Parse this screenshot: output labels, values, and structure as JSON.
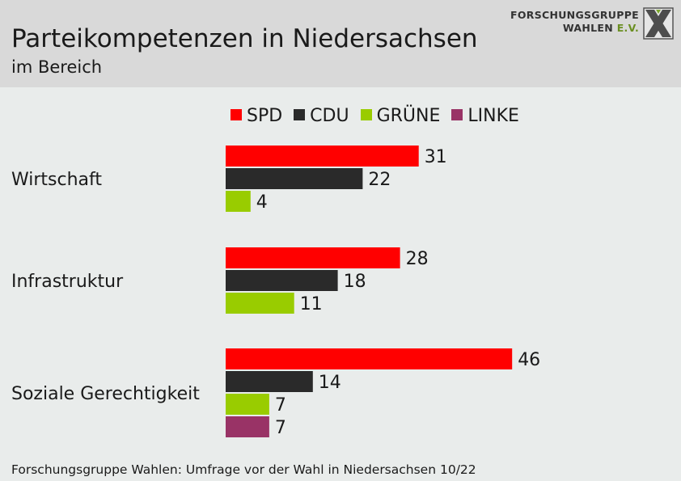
{
  "header": {
    "title": "Parteikompetenzen in Niedersachsen",
    "subtitle": "im Bereich",
    "logo_line1": "FORSCHUNGSGRUPPE",
    "logo_line2_main": "WAHLEN ",
    "logo_line2_suffix": "E.V."
  },
  "legend": [
    {
      "label": "SPD",
      "color": "#ff0000"
    },
    {
      "label": "CDU",
      "color": "#2a2a2a"
    },
    {
      "label": "GRÜNE",
      "color": "#99cc00"
    },
    {
      "label": "LINKE",
      "color": "#993366"
    }
  ],
  "chart_data": {
    "type": "bar",
    "orientation": "horizontal",
    "title": "Parteikompetenzen in Niedersachsen",
    "subtitle": "im Bereich",
    "categories": [
      "Wirtschaft",
      "Infrastruktur",
      "Soziale Gerechtigkeit"
    ],
    "series": [
      {
        "name": "SPD",
        "color": "#ff0000",
        "values": [
          31,
          28,
          46
        ]
      },
      {
        "name": "CDU",
        "color": "#2a2a2a",
        "values": [
          22,
          18,
          14
        ]
      },
      {
        "name": "GRÜNE",
        "color": "#99cc00",
        "values": [
          4,
          11,
          7
        ]
      },
      {
        "name": "LINKE",
        "color": "#993366",
        "values": [
          null,
          null,
          7
        ]
      }
    ],
    "legend_position": "top",
    "grid": false
  },
  "source": "Forschungsgruppe Wahlen: Umfrage vor der Wahl in Niedersachsen 10/22"
}
